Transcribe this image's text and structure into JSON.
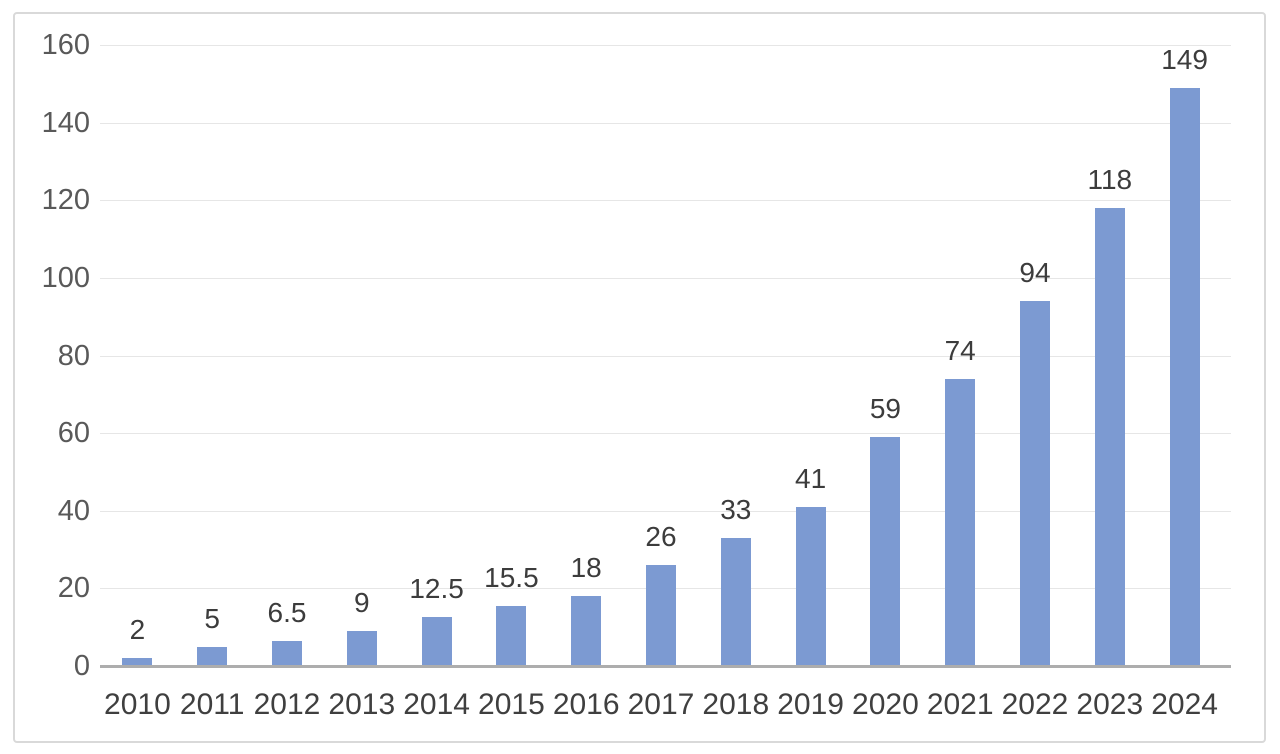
{
  "chart_data": {
    "type": "bar",
    "title": "",
    "xlabel": "",
    "ylabel": "",
    "categories": [
      "2010",
      "2011",
      "2012",
      "2013",
      "2014",
      "2015",
      "2016",
      "2017",
      "2018",
      "2019",
      "2020",
      "2021",
      "2022",
      "2023",
      "2024"
    ],
    "values": [
      2,
      5,
      6.5,
      9,
      12.5,
      15.5,
      18,
      26,
      33,
      41,
      59,
      74,
      94,
      118,
      149
    ],
    "ylim": [
      0,
      160
    ],
    "yticks": [
      0,
      20,
      40,
      60,
      80,
      100,
      120,
      140,
      160
    ],
    "grid": true,
    "legend": false,
    "data_labels_shown": true,
    "colors": {
      "bar": "#7C9AD2",
      "gridline": "#E6E6E6",
      "axis_line": "#ADADAD",
      "y_tick_text": "#595959",
      "x_tick_text": "#3F3F3F",
      "data_label_text": "#3C3C3C",
      "frame_border": "#D9D9D9",
      "background": "#FFFFFF"
    }
  }
}
